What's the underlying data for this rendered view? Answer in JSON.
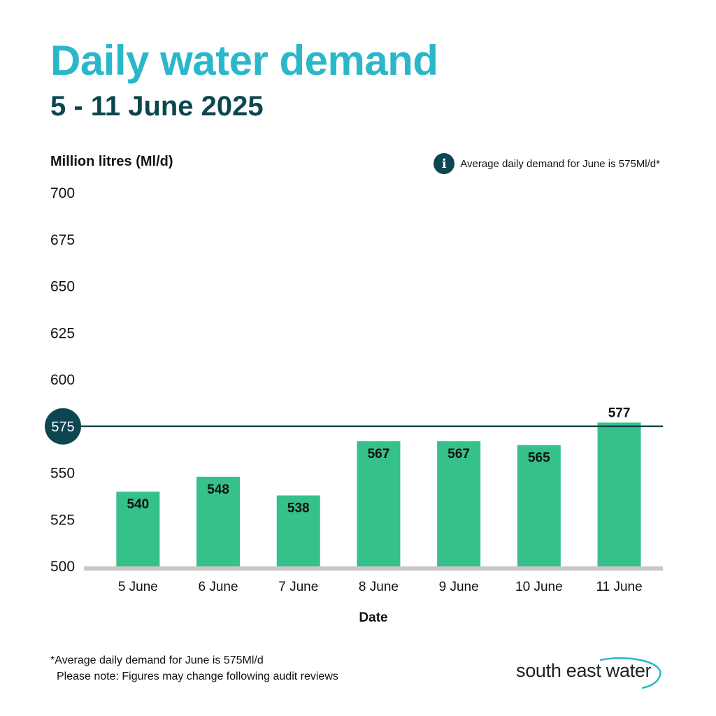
{
  "header": {
    "title": "Daily water demand",
    "subtitle": "5 - 11 June 2025"
  },
  "info": {
    "icon": "info-icon",
    "icon_glyph": "i",
    "text": "Average daily demand for June is 575Ml/d*"
  },
  "chart_data": {
    "type": "bar",
    "title": "Daily water demand",
    "subtitle": "5 - 11 June 2025",
    "ylabel": "Million litres (Ml/d)",
    "xlabel": "Date",
    "categories": [
      "5 June",
      "6 June",
      "7 June",
      "8 June",
      "9 June",
      "10 June",
      "11 June"
    ],
    "values": [
      540,
      548,
      538,
      567,
      567,
      565,
      577
    ],
    "ylim": [
      500,
      700
    ],
    "yticks": [
      500,
      525,
      550,
      575,
      600,
      625,
      650,
      675,
      700
    ],
    "reference_line": {
      "value": 575,
      "label": "575"
    },
    "grid": false,
    "bar_color": "#36c08a",
    "reference_color": "#0c4650",
    "baseline_color": "#c8c8c8"
  },
  "footer": {
    "footnote": "*Average daily demand for June is 575Ml/d",
    "note": "Please note: Figures may change following audit reviews",
    "logo_text": "south east water",
    "logo_color": "#2ab7c9"
  }
}
